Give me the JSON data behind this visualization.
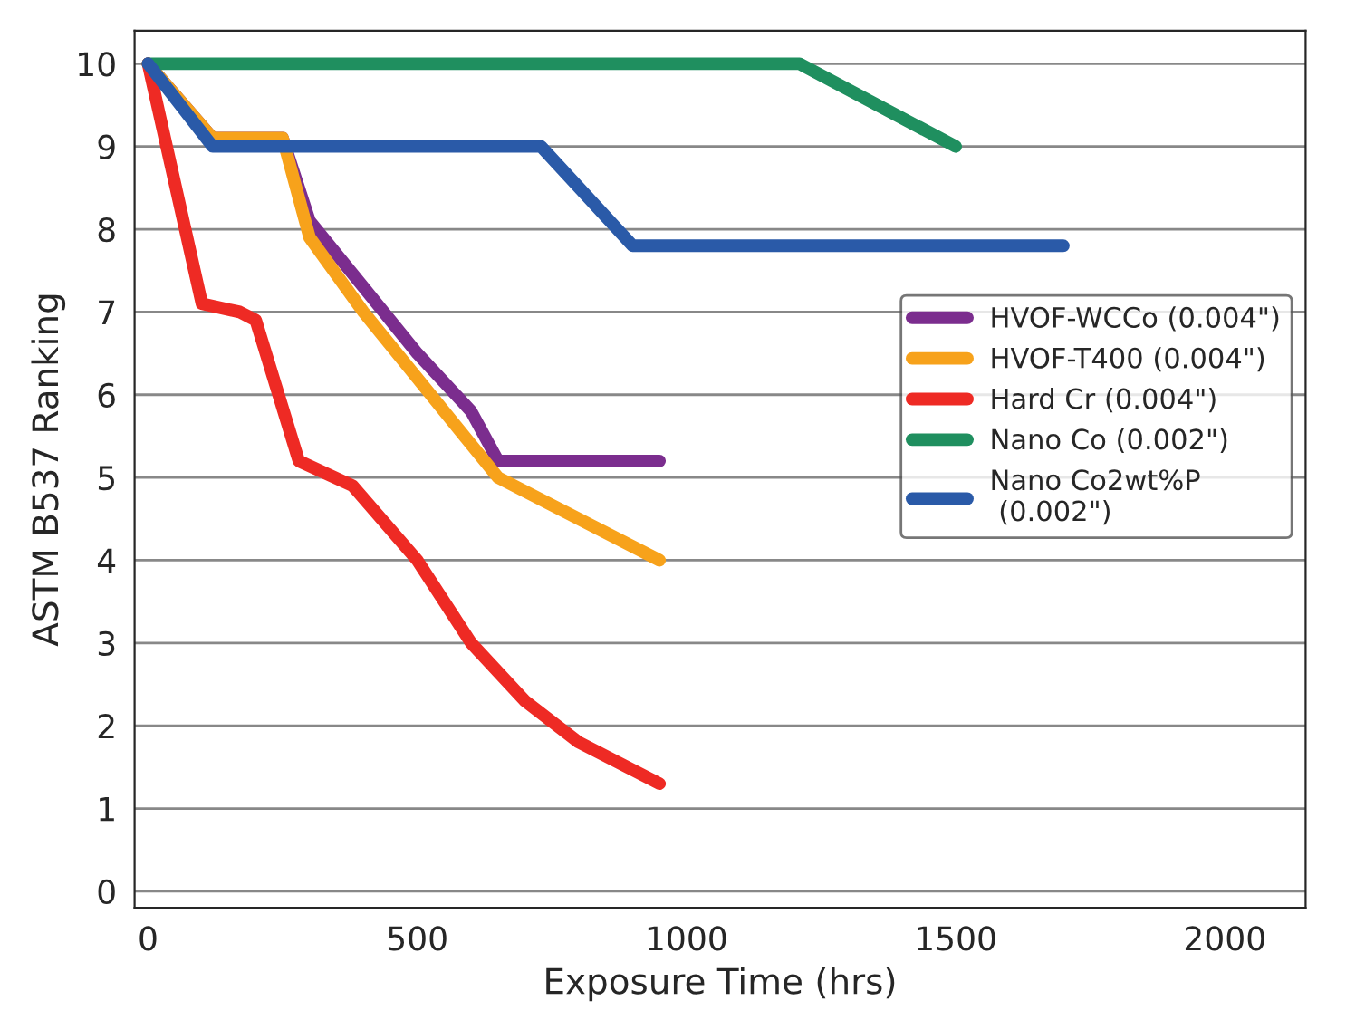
{
  "chart_data": {
    "type": "line",
    "xlabel": "Exposure Time (hrs)",
    "ylabel": "ASTM B537 Ranking",
    "xlim": [
      -25,
      2150
    ],
    "ylim": [
      -0.2,
      10.4
    ],
    "xticks": [
      0,
      500,
      1000,
      1500,
      2000
    ],
    "yticks": [
      0,
      1,
      2,
      3,
      4,
      5,
      6,
      7,
      8,
      9,
      10
    ],
    "grid": "y",
    "legend": "right",
    "line_style": "solid",
    "marker": "none",
    "series": [
      {
        "name": "HVOF-WCCo (0.004\")",
        "color": "#7b2d8e",
        "x": [
          0,
          120,
          250,
          300,
          400,
          500,
          600,
          650,
          950
        ],
        "values": [
          10,
          9.1,
          9.1,
          8.1,
          7.3,
          6.5,
          5.8,
          5.2,
          5.2
        ]
      },
      {
        "name": "HVOF-T400 (0.004\")",
        "color": "#f7a21b",
        "x": [
          0,
          120,
          250,
          300,
          400,
          500,
          600,
          650,
          950
        ],
        "values": [
          10,
          9.1,
          9.1,
          7.9,
          7.0,
          6.2,
          5.4,
          5.0,
          4.0
        ]
      },
      {
        "name": "Hard Cr (0.004\")",
        "color": "#ee2a24",
        "x": [
          0,
          100,
          170,
          200,
          280,
          380,
          500,
          600,
          700,
          800,
          950
        ],
        "values": [
          10,
          7.1,
          7.0,
          6.9,
          5.2,
          4.9,
          4.0,
          3.0,
          2.3,
          1.8,
          1.3
        ]
      },
      {
        "name": "Nano Co (0.002\")",
        "color": "#1f8f5f",
        "x": [
          0,
          1210,
          1500
        ],
        "values": [
          10,
          10,
          9.0
        ]
      },
      {
        "name": "Nano Co2wt%P\n (0.002\")",
        "color": "#2a5aa8",
        "x": [
          0,
          120,
          730,
          900,
          1700
        ],
        "values": [
          10,
          9.0,
          9.0,
          7.8,
          7.8
        ]
      }
    ]
  }
}
